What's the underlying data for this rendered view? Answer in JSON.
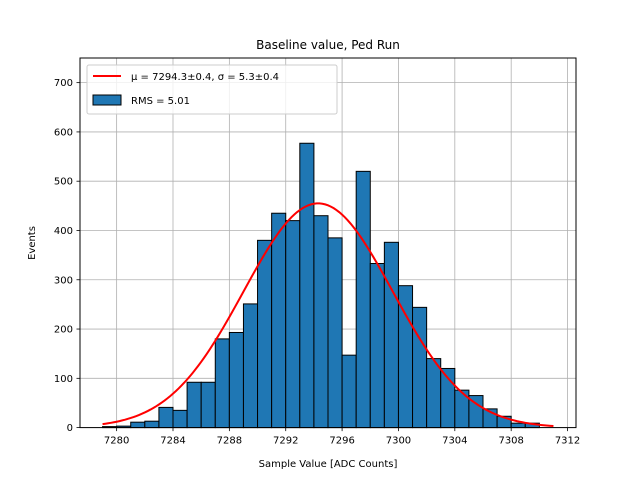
{
  "chart_data": {
    "type": "bar",
    "title": "Baseline value, Ped Run",
    "xlabel": "Sample Value [ADC Counts]",
    "ylabel": "Events",
    "xlim": [
      7277.4,
      7312.6
    ],
    "ylim": [
      0,
      750
    ],
    "xticks": [
      7280,
      7284,
      7288,
      7292,
      7296,
      7300,
      7304,
      7308,
      7312
    ],
    "yticks": [
      0,
      100,
      200,
      300,
      400,
      500,
      600,
      700
    ],
    "grid": true,
    "legend_location": "top-left",
    "bin_width": 1,
    "bins": [
      {
        "x0": 7279,
        "count": 2
      },
      {
        "x0": 7280,
        "count": 3
      },
      {
        "x0": 7281,
        "count": 11
      },
      {
        "x0": 7282,
        "count": 13
      },
      {
        "x0": 7283,
        "count": 41
      },
      {
        "x0": 7284,
        "count": 35
      },
      {
        "x0": 7285,
        "count": 92
      },
      {
        "x0": 7286,
        "count": 92
      },
      {
        "x0": 7287,
        "count": 180
      },
      {
        "x0": 7288,
        "count": 193
      },
      {
        "x0": 7289,
        "count": 251
      },
      {
        "x0": 7290,
        "count": 380
      },
      {
        "x0": 7291,
        "count": 435
      },
      {
        "x0": 7292,
        "count": 420
      },
      {
        "x0": 7293,
        "count": 577
      },
      {
        "x0": 7294,
        "count": 430
      },
      {
        "x0": 7295,
        "count": 385
      },
      {
        "x0": 7296,
        "count": 147
      },
      {
        "x0": 7297,
        "count": 520
      },
      {
        "x0": 7298,
        "count": 333
      },
      {
        "x0": 7299,
        "count": 376
      },
      {
        "x0": 7300,
        "count": 288
      },
      {
        "x0": 7301,
        "count": 244
      },
      {
        "x0": 7302,
        "count": 140
      },
      {
        "x0": 7303,
        "count": 120
      },
      {
        "x0": 7304,
        "count": 76
      },
      {
        "x0": 7305,
        "count": 65
      },
      {
        "x0": 7306,
        "count": 38
      },
      {
        "x0": 7307,
        "count": 23
      },
      {
        "x0": 7308,
        "count": 9
      },
      {
        "x0": 7309,
        "count": 9
      }
    ],
    "fit": {
      "label": "μ = 7294.3±0.4, σ = 5.3±0.4",
      "mu": 7294.3,
      "sigma": 5.3,
      "amplitude": 455,
      "x_range": [
        7279,
        7311
      ]
    },
    "legend": [
      {
        "label": "μ = 7294.3±0.4, σ = 5.3±0.4",
        "kind": "line"
      },
      {
        "label": "RMS = 5.01",
        "kind": "patch"
      }
    ],
    "colors": {
      "bar_fill": "#1f77b4",
      "bar_edge": "#000000",
      "fit_line": "#ff0000",
      "grid": "#b0b0b0"
    }
  }
}
